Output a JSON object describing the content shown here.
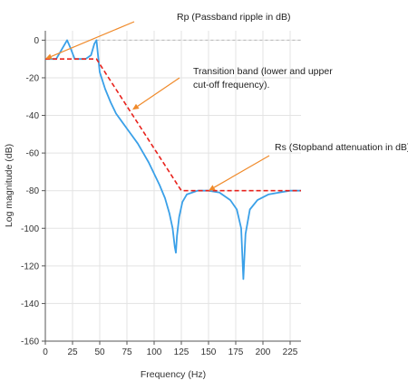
{
  "chart_data": {
    "type": "line",
    "xlabel": "Frequency (Hz)",
    "ylabel": "Log magnitude (dB)",
    "xlim": [
      0,
      235
    ],
    "ylim": [
      -160,
      5
    ],
    "x_ticks": [
      0,
      25,
      50,
      75,
      100,
      125,
      150,
      175,
      200,
      225
    ],
    "y_ticks": [
      0,
      -20,
      -40,
      -60,
      -80,
      -100,
      -120,
      -140,
      -160
    ],
    "grid": true,
    "colors": {
      "response": "#3aa0e8",
      "template": "#e8221c",
      "reference": "#b8b8b8",
      "arrow": "#f08a2a"
    },
    "series": [
      {
        "style": "solid",
        "x": [
          0,
          10,
          15,
          20,
          23,
          27,
          30,
          33,
          37,
          42,
          45,
          47,
          50,
          55,
          60,
          65,
          70,
          75,
          80,
          85,
          90,
          95,
          100,
          105,
          110,
          114,
          117,
          119,
          120,
          121,
          123,
          126,
          130,
          140,
          150,
          160,
          170,
          176,
          180,
          182,
          184,
          188,
          195,
          205,
          215,
          225,
          230,
          235
        ],
        "y": [
          -10,
          -10,
          -5,
          0,
          -4,
          -10,
          -10,
          -10,
          -10,
          -8,
          -2,
          0,
          -17,
          -26,
          -33,
          -39,
          -43,
          -47,
          -51,
          -55,
          -60,
          -65,
          -71,
          -77,
          -84,
          -92,
          -100,
          -110,
          -113,
          -104,
          -94,
          -86,
          -82,
          -80,
          -80,
          -81,
          -85,
          -90,
          -100,
          -127,
          -103,
          -90,
          -85,
          -82,
          -81,
          -80,
          -80,
          -80
        ]
      },
      {
        "style": "dashed",
        "x": [
          0,
          47,
          125,
          235
        ],
        "y": [
          -10,
          -10,
          -80,
          -80
        ]
      }
    ],
    "reference_line": {
      "y": 0,
      "style": "dashed",
      "x_start": 47
    },
    "annotations": [
      {
        "text": "Rp (Passband ripple in dB)",
        "arrow_to": [
          0,
          -10
        ]
      },
      {
        "text": "Transition band (lower and upper\ncut-off frequency).",
        "arrow_to": [
          80,
          -37
        ]
      },
      {
        "text": "Rs (Stopband attenuation in dB)",
        "arrow_to": [
          150,
          -80
        ]
      }
    ]
  }
}
